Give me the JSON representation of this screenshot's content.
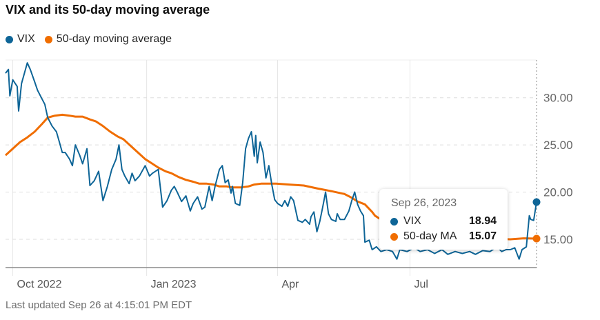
{
  "chart_data": {
    "type": "line",
    "title": "VIX and its 50-day moving average",
    "x_unit": "days since Sep 26, 2022",
    "xlim": [
      0,
      365
    ],
    "ylim": [
      12,
      34
    ],
    "yticks": [
      15,
      20,
      25,
      30
    ],
    "ytick_labels": [
      "15.00",
      "20.00",
      "25.00",
      "30.00"
    ],
    "xticks": [
      {
        "day": 5,
        "label": "Oct 2022"
      },
      {
        "day": 97,
        "label": "Jan 2023"
      },
      {
        "day": 187,
        "label": "Apr"
      },
      {
        "day": 278,
        "label": "Jul"
      }
    ],
    "legend_position": "top-left",
    "series": [
      {
        "name": "VIX",
        "color": "#0e6597",
        "points": [
          [
            0,
            32.6
          ],
          [
            2,
            33.0
          ],
          [
            3,
            30.2
          ],
          [
            5,
            31.9
          ],
          [
            8,
            31.2
          ],
          [
            9,
            28.6
          ],
          [
            11,
            31.5
          ],
          [
            15,
            33.7
          ],
          [
            17,
            33.0
          ],
          [
            20,
            31.7
          ],
          [
            22,
            30.8
          ],
          [
            25,
            29.9
          ],
          [
            27,
            29.3
          ],
          [
            29,
            27.9
          ],
          [
            32,
            27.0
          ],
          [
            35,
            26.4
          ],
          [
            37,
            25.3
          ],
          [
            39,
            24.2
          ],
          [
            41,
            24.2
          ],
          [
            44,
            23.5
          ],
          [
            46,
            22.8
          ],
          [
            48,
            25.0
          ],
          [
            51,
            23.9
          ],
          [
            53,
            23.0
          ],
          [
            56,
            24.6
          ],
          [
            58,
            20.7
          ],
          [
            61,
            21.2
          ],
          [
            64,
            22.2
          ],
          [
            67,
            19.1
          ],
          [
            70,
            20.6
          ],
          [
            73,
            22.4
          ],
          [
            76,
            23.5
          ],
          [
            78,
            25.0
          ],
          [
            80,
            22.4
          ],
          [
            82,
            21.7
          ],
          [
            85,
            20.9
          ],
          [
            87,
            22.0
          ],
          [
            89,
            21.2
          ],
          [
            92,
            21.7
          ],
          [
            96,
            22.8
          ],
          [
            99,
            21.7
          ],
          [
            101,
            22.0
          ],
          [
            105,
            22.4
          ],
          [
            108,
            18.4
          ],
          [
            111,
            19.1
          ],
          [
            114,
            20.2
          ],
          [
            116,
            20.6
          ],
          [
            118,
            20.0
          ],
          [
            121,
            19.0
          ],
          [
            124,
            19.6
          ],
          [
            127,
            18.0
          ],
          [
            129,
            18.8
          ],
          [
            132,
            19.5
          ],
          [
            135,
            18.2
          ],
          [
            137,
            18.4
          ],
          [
            140,
            20.6
          ],
          [
            142,
            19.1
          ],
          [
            144,
            20.6
          ],
          [
            147,
            22.4
          ],
          [
            149,
            22.8
          ],
          [
            151,
            21.0
          ],
          [
            153,
            21.3
          ],
          [
            155,
            19.9
          ],
          [
            156,
            20.6
          ],
          [
            158,
            18.8
          ],
          [
            161,
            18.6
          ],
          [
            163,
            21.0
          ],
          [
            165,
            24.6
          ],
          [
            167,
            25.7
          ],
          [
            169,
            26.4
          ],
          [
            171,
            23.8
          ],
          [
            172,
            26.0
          ],
          [
            173,
            23.1
          ],
          [
            175,
            25.3
          ],
          [
            177,
            24.2
          ],
          [
            179,
            21.5
          ],
          [
            181,
            22.8
          ],
          [
            183,
            20.8
          ],
          [
            185,
            19.2
          ],
          [
            187,
            18.8
          ],
          [
            190,
            18.5
          ],
          [
            192,
            19.1
          ],
          [
            194,
            18.5
          ],
          [
            196,
            19.5
          ],
          [
            198,
            19.1
          ],
          [
            201,
            17.0
          ],
          [
            204,
            16.8
          ],
          [
            206,
            17.1
          ],
          [
            209,
            16.6
          ],
          [
            210,
            17.4
          ],
          [
            212,
            17.9
          ],
          [
            214,
            15.8
          ],
          [
            216,
            16.9
          ],
          [
            218,
            18.4
          ],
          [
            220,
            20.0
          ],
          [
            222,
            17.7
          ],
          [
            224,
            17.1
          ],
          [
            227,
            16.9
          ],
          [
            228,
            17.7
          ],
          [
            230,
            17.1
          ],
          [
            233,
            17.1
          ],
          [
            236,
            18.0
          ],
          [
            238,
            19.1
          ],
          [
            240,
            20.0
          ],
          [
            242,
            18.7
          ],
          [
            244,
            18.0
          ],
          [
            246,
            17.5
          ],
          [
            247,
            14.7
          ],
          [
            250,
            14.9
          ],
          [
            252,
            13.9
          ],
          [
            255,
            14.2
          ],
          [
            258,
            13.7
          ],
          [
            262,
            13.9
          ],
          [
            266,
            13.7
          ],
          [
            269,
            12.9
          ],
          [
            271,
            13.9
          ],
          [
            276,
            13.7
          ],
          [
            281,
            14.1
          ],
          [
            285,
            13.7
          ],
          [
            290,
            13.9
          ],
          [
            295,
            13.5
          ],
          [
            300,
            13.9
          ],
          [
            304,
            13.4
          ],
          [
            309,
            13.7
          ],
          [
            314,
            13.5
          ],
          [
            319,
            13.7
          ],
          [
            323,
            13.4
          ],
          [
            328,
            13.8
          ],
          [
            333,
            13.7
          ],
          [
            338,
            14.2
          ],
          [
            341,
            13.7
          ],
          [
            344,
            13.9
          ],
          [
            347,
            13.9
          ],
          [
            350,
            14.1
          ],
          [
            353,
            12.9
          ],
          [
            355,
            13.9
          ],
          [
            358,
            14.2
          ],
          [
            360,
            17.5
          ],
          [
            361,
            17.1
          ],
          [
            363,
            17.0
          ],
          [
            365,
            18.94
          ]
        ]
      },
      {
        "name": "50-day moving average",
        "color": "#f06d00",
        "points": [
          [
            0,
            23.9
          ],
          [
            5,
            24.6
          ],
          [
            10,
            25.3
          ],
          [
            15,
            25.8
          ],
          [
            20,
            26.4
          ],
          [
            25,
            27.2
          ],
          [
            29,
            27.9
          ],
          [
            34,
            28.1
          ],
          [
            39,
            28.2
          ],
          [
            44,
            28.1
          ],
          [
            48,
            28.0
          ],
          [
            53,
            28.0
          ],
          [
            58,
            27.7
          ],
          [
            62,
            27.5
          ],
          [
            67,
            27.0
          ],
          [
            72,
            26.4
          ],
          [
            77,
            25.9
          ],
          [
            81,
            25.6
          ],
          [
            86,
            24.9
          ],
          [
            91,
            24.2
          ],
          [
            96,
            23.5
          ],
          [
            100,
            23.1
          ],
          [
            105,
            22.6
          ],
          [
            110,
            22.2
          ],
          [
            114,
            22.0
          ],
          [
            119,
            21.6
          ],
          [
            124,
            21.3
          ],
          [
            129,
            21.1
          ],
          [
            133,
            20.9
          ],
          [
            138,
            20.9
          ],
          [
            143,
            20.8
          ],
          [
            147,
            20.6
          ],
          [
            152,
            20.6
          ],
          [
            156,
            20.5
          ],
          [
            162,
            20.5
          ],
          [
            167,
            20.6
          ],
          [
            171,
            20.8
          ],
          [
            176,
            20.9
          ],
          [
            181,
            20.9
          ],
          [
            186,
            20.9
          ],
          [
            195,
            20.8
          ],
          [
            205,
            20.7
          ],
          [
            214,
            20.4
          ],
          [
            224,
            20.1
          ],
          [
            233,
            19.8
          ],
          [
            238,
            19.4
          ],
          [
            242,
            19.0
          ],
          [
            247,
            18.7
          ],
          [
            252,
            17.9
          ],
          [
            254,
            17.5
          ],
          [
            257,
            17.2
          ],
          [
            262,
            16.7
          ],
          [
            281,
            15.8
          ],
          [
            304,
            15.2
          ],
          [
            328,
            15.1
          ],
          [
            347,
            15.0
          ],
          [
            356,
            15.1
          ],
          [
            365,
            15.07
          ]
        ]
      }
    ]
  },
  "legend": {
    "vix": "VIX",
    "ma": "50-day moving average"
  },
  "tooltip": {
    "date": "Sep 26, 2023",
    "vix_label": "VIX",
    "vix_value": "18.94",
    "ma_label": "50-day MA",
    "ma_value": "15.07"
  },
  "footer": "Last updated Sep 26 at 4:15:01 PM EDT",
  "colors": {
    "vix": "#0e6597",
    "ma": "#f06d00"
  }
}
